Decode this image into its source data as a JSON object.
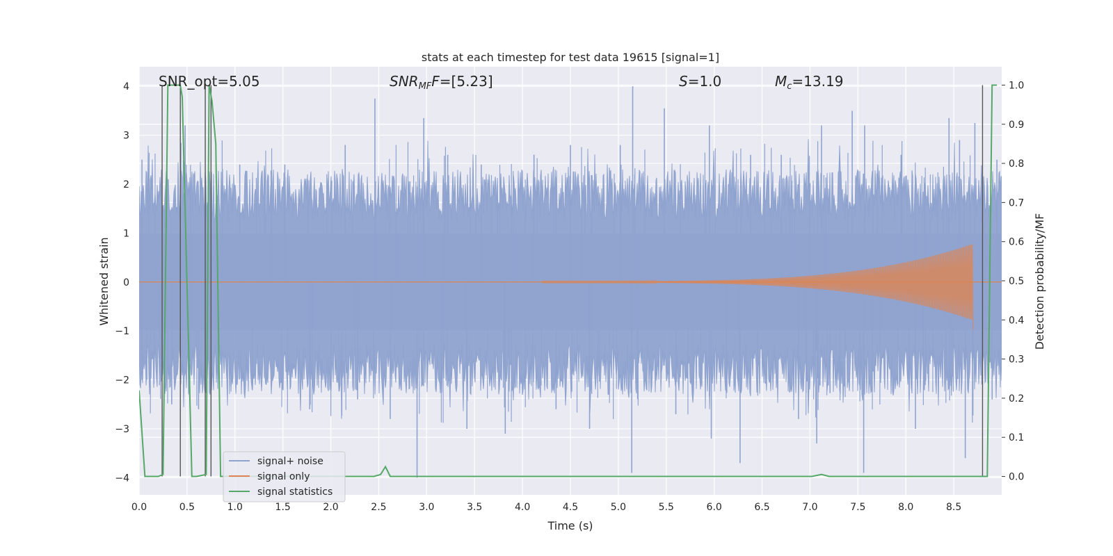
{
  "chart_data": {
    "type": "line",
    "title": "stats at each timestep for test data 19615 [signal=1]",
    "xlabel": "Time (s)",
    "ylabel": "Whitened strain",
    "ylabel_right": "Detection probability/MF",
    "xlim": [
      0.0,
      9.0
    ],
    "ylim": [
      -4.35,
      4.4
    ],
    "ylim_right": [
      -0.047,
      1.047
    ],
    "x_ticks": [
      "0.0",
      "0.5",
      "1.0",
      "1.5",
      "2.0",
      "2.5",
      "3.0",
      "3.5",
      "4.0",
      "4.5",
      "5.0",
      "5.5",
      "6.0",
      "6.5",
      "7.0",
      "7.5",
      "8.0",
      "8.5"
    ],
    "y_ticks": [
      "4",
      "3",
      "2",
      "1",
      "0",
      "−1",
      "−2",
      "−3",
      "−4"
    ],
    "y_ticks_right": [
      "1.0",
      "0.9",
      "0.8",
      "0.7",
      "0.6",
      "0.5",
      "0.4",
      "0.3",
      "0.2",
      "0.1",
      "0.0"
    ],
    "grid": true,
    "annotations": {
      "snr_opt": "SNR_opt=5.05",
      "snr_mf_main": "SNR",
      "snr_mf_sub": "MF",
      "snr_mf_value": "=[5.23]",
      "s_main": "S",
      "s_value": "=1.0",
      "mc_main": "M",
      "mc_sub": "c",
      "mc_value": "=13.19"
    },
    "legend": {
      "position": "lower-left",
      "entries": [
        {
          "label": "signal+ noise",
          "color": "#8fa3cf"
        },
        {
          "label": "signal only",
          "color": "#dd8452"
        },
        {
          "label": "signal statistics",
          "color": "#55a868"
        }
      ]
    },
    "series": [
      {
        "name": "signal+ noise",
        "kind": "noise_band",
        "color": "#8fa3cf",
        "core_range": [
          -1.6,
          1.6
        ],
        "spikes": [
          {
            "x": 0.03,
            "y": 2.5
          },
          {
            "x": 0.08,
            "y": -2.0
          },
          {
            "x": 0.29,
            "y": 2.3
          },
          {
            "x": 0.34,
            "y": -2.5
          },
          {
            "x": 0.48,
            "y": 3.2
          },
          {
            "x": 0.62,
            "y": -2.6
          },
          {
            "x": 1.05,
            "y": 2.4
          },
          {
            "x": 1.18,
            "y": -2.2
          },
          {
            "x": 1.52,
            "y": 2.4
          },
          {
            "x": 1.78,
            "y": -2.6
          },
          {
            "x": 2.15,
            "y": 2.8
          },
          {
            "x": 2.28,
            "y": -2.4
          },
          {
            "x": 2.46,
            "y": 3.75
          },
          {
            "x": 2.62,
            "y": -2.8
          },
          {
            "x": 2.97,
            "y": 3.35
          },
          {
            "x": 2.9,
            "y": -4.0
          },
          {
            "x": 3.22,
            "y": 2.6
          },
          {
            "x": 3.42,
            "y": -3.0
          },
          {
            "x": 3.57,
            "y": 2.4
          },
          {
            "x": 3.82,
            "y": -3.1
          },
          {
            "x": 4.12,
            "y": 2.6
          },
          {
            "x": 4.35,
            "y": -2.6
          },
          {
            "x": 4.5,
            "y": 2.8
          },
          {
            "x": 4.7,
            "y": -3.0
          },
          {
            "x": 5.02,
            "y": 2.8
          },
          {
            "x": 5.15,
            "y": 4.0
          },
          {
            "x": 5.14,
            "y": -3.9
          },
          {
            "x": 5.48,
            "y": 3.55
          },
          {
            "x": 5.6,
            "y": -2.7
          },
          {
            "x": 5.95,
            "y": 3.2
          },
          {
            "x": 5.97,
            "y": -3.2
          },
          {
            "x": 6.38,
            "y": 2.6
          },
          {
            "x": 6.27,
            "y": -3.7
          },
          {
            "x": 6.7,
            "y": 2.6
          },
          {
            "x": 6.88,
            "y": -2.8
          },
          {
            "x": 7.12,
            "y": 3.2
          },
          {
            "x": 7.07,
            "y": -3.3
          },
          {
            "x": 7.44,
            "y": 3.5
          },
          {
            "x": 7.57,
            "y": 3.2
          },
          {
            "x": 7.56,
            "y": -3.9
          },
          {
            "x": 7.95,
            "y": 2.6
          },
          {
            "x": 8.1,
            "y": -3.0
          },
          {
            "x": 8.45,
            "y": 3.35
          },
          {
            "x": 8.56,
            "y": 2.9
          },
          {
            "x": 8.72,
            "y": 3.25
          },
          {
            "x": 8.62,
            "y": -3.6
          },
          {
            "x": 8.95,
            "y": 2.5
          },
          {
            "x": 8.9,
            "y": -2.4
          }
        ]
      },
      {
        "name": "signal only",
        "kind": "chirp",
        "color": "#dd8452",
        "start_x": 4.2,
        "end_x": 8.7,
        "peak_y": 0.78,
        "min_y": -0.98
      },
      {
        "name": "signal statistics",
        "kind": "line",
        "axis": "right",
        "color": "#55a868",
        "x": [
          0.0,
          0.06,
          0.2,
          0.25,
          0.3,
          0.43,
          0.45,
          0.55,
          0.6,
          0.7,
          0.73,
          0.76,
          0.8,
          0.85,
          0.88,
          2.45,
          2.52,
          2.57,
          2.62,
          4.15,
          7.02,
          7.12,
          7.2,
          8.75,
          8.85,
          8.9,
          8.95
        ],
        "y": [
          0.22,
          0.0,
          0.0,
          0.005,
          1.0,
          1.0,
          0.97,
          0.0,
          0.0,
          0.005,
          1.0,
          0.96,
          0.85,
          0.0,
          0.0,
          0.0,
          0.005,
          0.025,
          0.0,
          0.0,
          0.0,
          0.005,
          0.0,
          0.0,
          0.0,
          1.0,
          1.0
        ]
      }
    ],
    "markers_vertical": [
      0.24,
      0.43,
      0.69,
      0.75,
      8.8
    ]
  }
}
